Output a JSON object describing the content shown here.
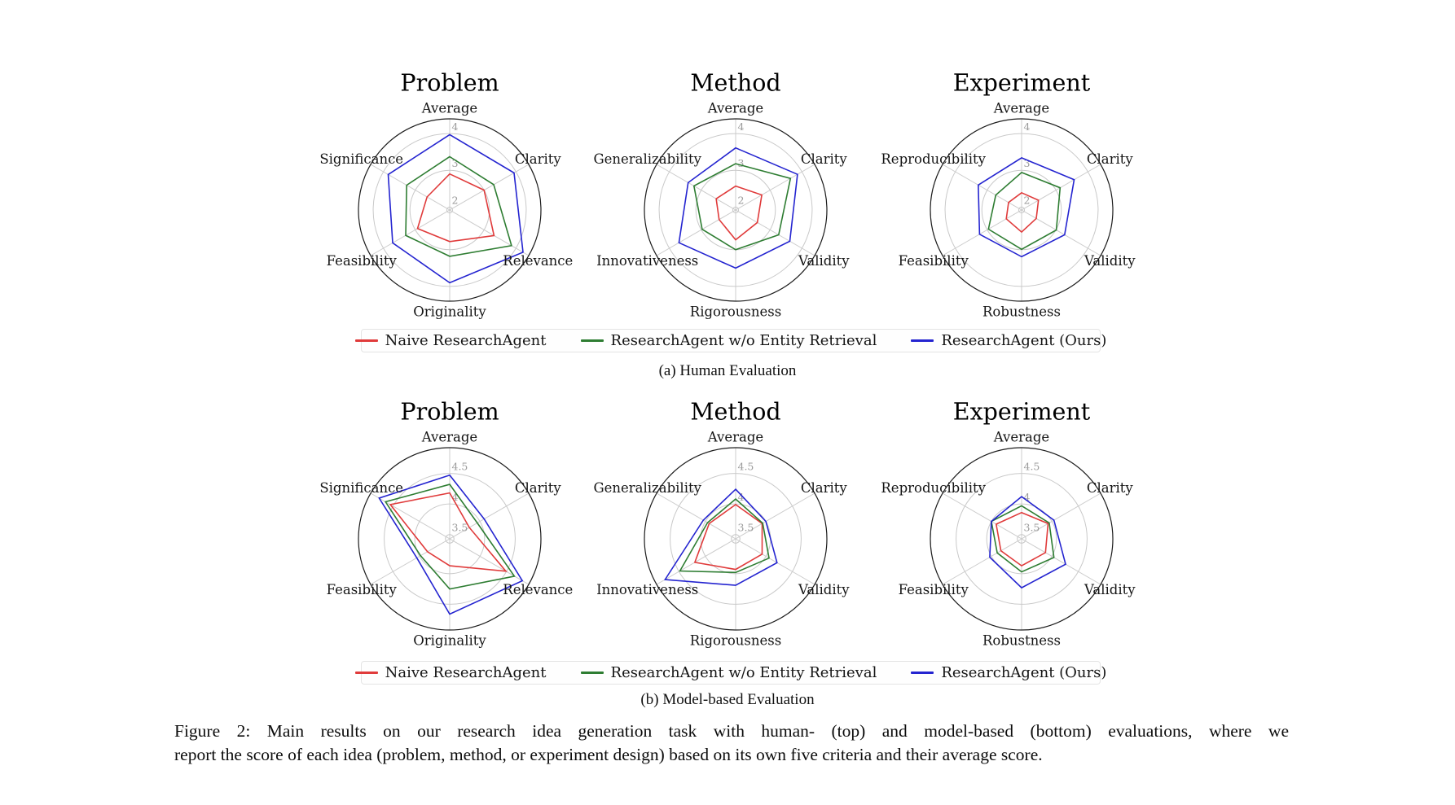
{
  "figure": {
    "subcaption_a": "(a) Human Evaluation",
    "subcaption_b": "(b) Model-based Evaluation",
    "caption_line1": "Figure 2: Main results on our research idea generation task with human- (top) and model-based (bottom) evaluations, where we",
    "caption_line2": "report the score of each idea (problem, method, or experiment design) based on its own five criteria and their average score."
  },
  "colors": {
    "naive": "#e03b3b",
    "wo_entity_retrieval": "#2e7d32",
    "ours": "#2424d0",
    "grid": "#c9c9c9",
    "spoke": "#cccccc",
    "outer_ring": "#1c1c1c",
    "tick_text": "#9b9b9b"
  },
  "legend": {
    "items": [
      {
        "label": "Naive ResearchAgent",
        "color": "#e03b3b"
      },
      {
        "label": "ResearchAgent w/o Entity Retrieval",
        "color": "#2e7d32"
      },
      {
        "label": "ResearchAgent (Ours)",
        "color": "#2424d0"
      }
    ]
  },
  "chart_data": [
    {
      "type": "radar",
      "evaluation": "Human Evaluation",
      "title": "Problem",
      "categories": [
        "Average",
        "Clarity",
        "Relevance",
        "Originality",
        "Feasibility",
        "Significance"
      ],
      "axis_min": 1.92,
      "axis_max": 4.4,
      "ticks": [
        {
          "value": 2,
          "label": "2"
        },
        {
          "value": 3,
          "label": "3"
        },
        {
          "value": 4,
          "label": "4"
        }
      ],
      "series": [
        {
          "name": "Naive ResearchAgent",
          "color": "#e03b3b",
          "values": [
            2.9,
            3.0,
            3.31,
            2.78,
            2.93,
            2.63
          ]
        },
        {
          "name": "ResearchAgent w/o Entity Retrieval",
          "color": "#2e7d32",
          "values": [
            3.37,
            3.3,
            3.86,
            3.18,
            3.3,
            3.27
          ]
        },
        {
          "name": "ResearchAgent (Ours)",
          "color": "#2424d0",
          "values": [
            3.97,
            3.94,
            4.22,
            3.9,
            3.71,
            3.85
          ]
        }
      ]
    },
    {
      "type": "radar",
      "evaluation": "Human Evaluation",
      "title": "Method",
      "categories": [
        "Average",
        "Clarity",
        "Validity",
        "Rigorousness",
        "Innovativeness",
        "Generalizability"
      ],
      "axis_min": 1.92,
      "axis_max": 4.4,
      "ticks": [
        {
          "value": 2,
          "label": "2"
        },
        {
          "value": 3,
          "label": "3"
        },
        {
          "value": 4,
          "label": "4"
        }
      ],
      "series": [
        {
          "name": "Naive ResearchAgent",
          "color": "#e03b3b",
          "values": [
            2.57,
            2.74,
            2.6,
            2.73,
            2.44,
            2.53
          ]
        },
        {
          "name": "ResearchAgent w/o Entity Retrieval",
          "color": "#2e7d32",
          "values": [
            3.18,
            3.64,
            3.27,
            3.0,
            2.97,
            3.23
          ]
        },
        {
          "name": "ResearchAgent (Ours)",
          "color": "#2424d0",
          "values": [
            3.61,
            3.86,
            3.62,
            3.5,
            3.7,
            3.41
          ]
        }
      ]
    },
    {
      "type": "radar",
      "evaluation": "Human Evaluation",
      "title": "Experiment",
      "categories": [
        "Average",
        "Clarity",
        "Validity",
        "Robustness",
        "Feasibility",
        "Reproducibility"
      ],
      "axis_min": 1.92,
      "axis_max": 4.4,
      "ticks": [
        {
          "value": 2,
          "label": "2"
        },
        {
          "value": 3,
          "label": "3"
        },
        {
          "value": 4,
          "label": "4"
        }
      ],
      "series": [
        {
          "name": "Naive ResearchAgent",
          "color": "#e03b3b",
          "values": [
            2.39,
            2.45,
            2.38,
            2.52,
            2.4,
            2.33
          ]
        },
        {
          "name": "ResearchAgent w/o Entity Retrieval",
          "color": "#2e7d32",
          "values": [
            2.94,
            3.13,
            3.01,
            2.99,
            2.96,
            2.73
          ]
        },
        {
          "name": "ResearchAgent (Ours)",
          "color": "#2424d0",
          "values": [
            3.34,
            3.57,
            3.27,
            3.19,
            3.24,
            3.28
          ]
        }
      ]
    },
    {
      "type": "radar",
      "evaluation": "Model-based Evaluation",
      "title": "Problem",
      "categories": [
        "Average",
        "Clarity",
        "Relevance",
        "Originality",
        "Feasibility",
        "Significance"
      ],
      "axis_min": 3.43,
      "axis_max": 4.92,
      "ticks": [
        {
          "value": 3.5,
          "label": "3.5"
        },
        {
          "value": 4,
          "label": "4"
        },
        {
          "value": 4.5,
          "label": "4.5"
        }
      ],
      "series": [
        {
          "name": "Naive ResearchAgent",
          "color": "#e03b3b",
          "values": [
            4.18,
            3.8,
            4.49,
            3.87,
            3.85,
            4.55
          ]
        },
        {
          "name": "ResearchAgent w/o Entity Retrieval",
          "color": "#2e7d32",
          "values": [
            4.32,
            3.95,
            4.65,
            4.25,
            3.98,
            4.64
          ]
        },
        {
          "name": "ResearchAgent (Ours)",
          "color": "#2424d0",
          "values": [
            4.47,
            4.08,
            4.8,
            4.66,
            4.05,
            4.76
          ]
        }
      ]
    },
    {
      "type": "radar",
      "evaluation": "Model-based Evaluation",
      "title": "Method",
      "categories": [
        "Average",
        "Clarity",
        "Validity",
        "Rigorousness",
        "Innovativeness",
        "Generalizability"
      ],
      "axis_min": 3.43,
      "axis_max": 4.92,
      "ticks": [
        {
          "value": 3.5,
          "label": "3.5"
        },
        {
          "value": 4,
          "label": "4"
        },
        {
          "value": 4.5,
          "label": "4.5"
        }
      ],
      "series": [
        {
          "name": "Naive ResearchAgent",
          "color": "#e03b3b",
          "values": [
            3.99,
            3.93,
            3.93,
            3.93,
            4.2,
            3.93
          ]
        },
        {
          "name": "ResearchAgent w/o Entity Retrieval",
          "color": "#2e7d32",
          "values": [
            4.08,
            3.94,
            4.06,
            3.98,
            4.48,
            3.96
          ]
        },
        {
          "name": "ResearchAgent (Ours)",
          "color": "#2424d0",
          "values": [
            4.24,
            4.0,
            4.21,
            4.19,
            4.76,
            4.04
          ]
        }
      ]
    },
    {
      "type": "radar",
      "evaluation": "Model-based Evaluation",
      "title": "Experiment",
      "categories": [
        "Average",
        "Clarity",
        "Validity",
        "Robustness",
        "Feasibility",
        "Reproducibility"
      ],
      "axis_min": 3.43,
      "axis_max": 4.92,
      "ticks": [
        {
          "value": 3.5,
          "label": "3.5"
        },
        {
          "value": 4,
          "label": "4"
        },
        {
          "value": 4.5,
          "label": "4.5"
        }
      ],
      "series": [
        {
          "name": "Naive ResearchAgent",
          "color": "#e03b3b",
          "values": [
            3.86,
            3.93,
            3.88,
            3.87,
            3.82,
            3.91
          ]
        },
        {
          "name": "ResearchAgent w/o Entity Retrieval",
          "color": "#2e7d32",
          "values": [
            3.97,
            3.95,
            4.04,
            3.97,
            3.89,
            4.0
          ]
        },
        {
          "name": "ResearchAgent (Ours)",
          "color": "#2424d0",
          "values": [
            4.12,
            4.04,
            4.26,
            4.23,
            4.03,
            4.0
          ]
        }
      ]
    }
  ]
}
